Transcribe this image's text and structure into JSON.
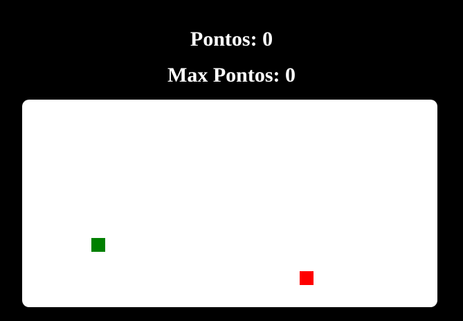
{
  "hud": {
    "score_label": "Pontos: 0",
    "max_score_label": "Max Pontos: 0",
    "score": 0,
    "max_score": 0
  },
  "board": {
    "background": "#ffffff",
    "snake_color": "#008000",
    "food_color": "#ff0000"
  }
}
